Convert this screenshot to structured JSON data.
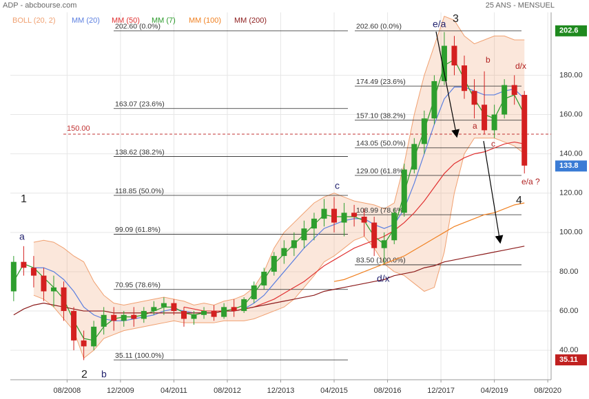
{
  "header": {
    "title": "ADP - abcbourse.com",
    "period": "25 ANS - MENSUEL"
  },
  "chart_data": {
    "type": "candlestick",
    "x": [
      "2007-04",
      "2007-07",
      "2007-10",
      "2008-01",
      "2008-04",
      "2008-07",
      "2008-10",
      "2009-01",
      "2009-04",
      "2009-07",
      "2009-10",
      "2010-01",
      "2010-04",
      "2010-07",
      "2010-10",
      "2011-01",
      "2011-04",
      "2011-07",
      "2011-10",
      "2012-01",
      "2012-04",
      "2012-07",
      "2012-10",
      "2013-01",
      "2013-04",
      "2013-07",
      "2013-10",
      "2014-01",
      "2014-04",
      "2014-07",
      "2014-10",
      "2015-01",
      "2015-04",
      "2015-07",
      "2015-10",
      "2016-01",
      "2016-04",
      "2016-07",
      "2016-10",
      "2017-01",
      "2017-04",
      "2017-07",
      "2017-10",
      "2018-01",
      "2018-04",
      "2018-07",
      "2018-10",
      "2019-01",
      "2019-04",
      "2019-07",
      "2019-10",
      "2020-01"
    ],
    "open": [
      70,
      85,
      82,
      78,
      70,
      72,
      60,
      45,
      42,
      52,
      58,
      55,
      58,
      56,
      60,
      62,
      64,
      60,
      56,
      58,
      60,
      57,
      62,
      60,
      66,
      73,
      80,
      88,
      92,
      96,
      102,
      107,
      112,
      105,
      110,
      108,
      105,
      92,
      96,
      110,
      132,
      145,
      158,
      177,
      195,
      185,
      172,
      165,
      152,
      160,
      175,
      170
    ],
    "high": [
      88,
      93,
      88,
      82,
      78,
      75,
      62,
      50,
      55,
      62,
      62,
      60,
      62,
      62,
      65,
      67,
      66,
      62,
      60,
      62,
      63,
      64,
      66,
      67,
      75,
      82,
      90,
      96,
      100,
      106,
      110,
      117,
      118,
      115,
      114,
      112,
      108,
      100,
      112,
      135,
      148,
      162,
      180,
      202,
      200,
      190,
      178,
      182,
      165,
      178,
      180,
      172
    ],
    "low": [
      65,
      78,
      72,
      65,
      62,
      55,
      40,
      35,
      40,
      48,
      50,
      52,
      52,
      54,
      58,
      58,
      58,
      52,
      53,
      56,
      55,
      56,
      57,
      59,
      64,
      71,
      78,
      84,
      88,
      92,
      96,
      103,
      100,
      98,
      103,
      98,
      88,
      84,
      94,
      108,
      130,
      140,
      155,
      175,
      180,
      168,
      158,
      150,
      148,
      158,
      165,
      130
    ],
    "close": [
      85,
      82,
      78,
      70,
      72,
      60,
      45,
      42,
      52,
      58,
      55,
      58,
      56,
      60,
      62,
      64,
      60,
      56,
      58,
      60,
      57,
      62,
      60,
      66,
      73,
      80,
      88,
      92,
      96,
      102,
      107,
      112,
      105,
      110,
      108,
      105,
      92,
      96,
      110,
      132,
      145,
      158,
      177,
      195,
      185,
      172,
      165,
      152,
      160,
      175,
      170,
      134
    ],
    "up_color": "#2e9e2e",
    "down_color": "#d42020",
    "bollinger": {
      "name": "BOLL (20, 2)",
      "color": "#f0a070",
      "upper": [
        null,
        null,
        95,
        96,
        95,
        92,
        88,
        85,
        75,
        68,
        64,
        63,
        64,
        65,
        66,
        67,
        66,
        65,
        63,
        64,
        63,
        65,
        66,
        68,
        72,
        80,
        92,
        100,
        105,
        110,
        115,
        118,
        120,
        118,
        116,
        115,
        114,
        112,
        115,
        135,
        160,
        180,
        195,
        210,
        208,
        200,
        196,
        198,
        200,
        200,
        198,
        198
      ],
      "lower": [
        null,
        null,
        68,
        66,
        62,
        56,
        50,
        36,
        40,
        46,
        48,
        50,
        51,
        52,
        53,
        54,
        55,
        54,
        54,
        54,
        54,
        55,
        55,
        55,
        56,
        58,
        60,
        62,
        66,
        72,
        78,
        85,
        88,
        92,
        96,
        98,
        92,
        84,
        80,
        78,
        74,
        70,
        72,
        90,
        120,
        140,
        148,
        148,
        148,
        146,
        144,
        140
      ]
    },
    "series": [
      {
        "name": "MM (20)",
        "color": "#5b7fe0",
        "values": [
          null,
          null,
          82,
          82,
          80,
          76,
          70,
          62,
          58,
          56,
          55,
          55,
          56,
          57,
          58,
          60,
          61,
          60,
          59,
          59,
          59,
          60,
          60,
          61,
          64,
          68,
          74,
          80,
          86,
          92,
          97,
          102,
          104,
          106,
          107,
          107,
          104,
          102,
          104,
          112,
          125,
          140,
          155,
          168,
          174,
          174,
          172,
          170,
          170,
          172,
          173,
          168
        ]
      },
      {
        "name": "MM (50)",
        "color": "#e03030",
        "values": [
          null,
          null,
          null,
          null,
          null,
          null,
          null,
          null,
          null,
          null,
          null,
          null,
          null,
          null,
          null,
          null,
          null,
          62,
          61,
          60,
          60,
          60,
          60,
          61,
          62,
          64,
          66,
          69,
          72,
          75,
          79,
          83,
          86,
          89,
          92,
          94,
          96,
          98,
          101,
          105,
          110,
          116,
          123,
          130,
          135,
          138,
          140,
          141,
          143,
          145,
          146,
          145
        ]
      },
      {
        "name": "MM (7)",
        "color": "#2a9a2a",
        "values": [
          75,
          84,
          82,
          77,
          72,
          66,
          55,
          46,
          45,
          52,
          56,
          57,
          57,
          58,
          60,
          62,
          62,
          59,
          58,
          59,
          59,
          60,
          61,
          63,
          69,
          76,
          84,
          89,
          94,
          99,
          104,
          109,
          108,
          108,
          108,
          106,
          98,
          94,
          102,
          120,
          138,
          152,
          168,
          185,
          188,
          178,
          168,
          160,
          158,
          168,
          170,
          160
        ]
      },
      {
        "name": "MM (100)",
        "color": "#f08020",
        "values": [
          null,
          null,
          null,
          null,
          null,
          null,
          null,
          null,
          null,
          null,
          null,
          null,
          null,
          null,
          null,
          null,
          null,
          null,
          null,
          null,
          null,
          null,
          null,
          null,
          null,
          null,
          null,
          null,
          null,
          null,
          null,
          null,
          75,
          76,
          78,
          80,
          82,
          84,
          86,
          88,
          91,
          94,
          97,
          100,
          103,
          105,
          107,
          109,
          110,
          112,
          114,
          115
        ]
      },
      {
        "name": "MM (200)",
        "color": "#8b1a1a",
        "values": [
          58,
          61,
          63,
          64,
          63,
          62,
          61,
          60,
          60,
          60,
          59,
          59,
          59,
          59,
          59,
          59,
          59,
          59,
          59,
          59,
          59,
          60,
          60,
          61,
          62,
          63,
          64,
          65,
          66,
          67,
          68,
          70,
          71,
          72,
          73,
          74,
          75,
          76,
          78,
          79,
          80,
          82,
          83,
          85,
          86,
          87,
          88,
          89,
          90,
          91,
          92,
          93
        ]
      }
    ],
    "xlim": [
      "2007-03",
      "2020-09"
    ],
    "xticks": [
      {
        "value": "2008-08",
        "label": "08/2008"
      },
      {
        "value": "2009-12",
        "label": "12/2009"
      },
      {
        "value": "2011-04",
        "label": "04/2011"
      },
      {
        "value": "2012-08",
        "label": "08/2012"
      },
      {
        "value": "2013-12",
        "label": "12/2013"
      },
      {
        "value": "2015-04",
        "label": "04/2015"
      },
      {
        "value": "2016-08",
        "label": "08/2016"
      },
      {
        "value": "2017-12",
        "label": "12/2017"
      },
      {
        "value": "2019-04",
        "label": "04/2019"
      },
      {
        "value": "2020-08",
        "label": "08/2020"
      }
    ],
    "ylim": [
      25,
      212
    ],
    "yticks": [
      {
        "value": 40,
        "label": "40.00"
      },
      {
        "value": 60,
        "label": "60.00"
      },
      {
        "value": 80,
        "label": "80.00"
      },
      {
        "value": 100,
        "label": "100.00"
      },
      {
        "value": 120,
        "label": "120.00"
      },
      {
        "value": 140,
        "label": "140.00"
      },
      {
        "value": 160,
        "label": "160.00"
      },
      {
        "value": 180,
        "label": "180.00"
      }
    ],
    "grid": true,
    "fib_left": [
      {
        "value": 202.6,
        "label": "202.60  (0.0%)"
      },
      {
        "value": 163.07,
        "label": "163.07  (23.6%)"
      },
      {
        "value": 138.62,
        "label": "138.62  (38.2%)"
      },
      {
        "value": 118.85,
        "label": "118.85  (50.0%)"
      },
      {
        "value": 99.09,
        "label": "99.09  (61.8%)"
      },
      {
        "value": 70.95,
        "label": "70.95  (78.6%)"
      },
      {
        "value": 35.11,
        "label": "35.11  (100.0%)"
      }
    ],
    "fib_right": [
      {
        "value": 202.6,
        "label": "202.60  (0.0%)"
      },
      {
        "value": 174.49,
        "label": "174.49  (23.6%)"
      },
      {
        "value": 157.1,
        "label": "157.10  (38.2%)"
      },
      {
        "value": 143.05,
        "label": "143.05  (50.0%)"
      },
      {
        "value": 129.0,
        "label": "129.00  (61.8%)"
      },
      {
        "value": 108.99,
        "label": "108.99  (78.6%)"
      },
      {
        "value": 83.5,
        "label": "83.50  (100.0%)"
      }
    ],
    "reference_line": {
      "value": 150,
      "label": "150.00",
      "color": "#c03030"
    },
    "price_tags": [
      {
        "value": 202.6,
        "label": "202.6",
        "color": "#1f8a1f"
      },
      {
        "value": 133.8,
        "label": "133.8",
        "color": "#3a7bd5"
      },
      {
        "value": 35.11,
        "label": "35.11",
        "color": "#c0201f"
      }
    ],
    "annotations": [
      "1",
      "a",
      "2",
      "b",
      "c",
      "d/x",
      "3",
      "e/a",
      "4",
      "b",
      "d/x",
      "a",
      "c",
      "e/a ?"
    ]
  }
}
